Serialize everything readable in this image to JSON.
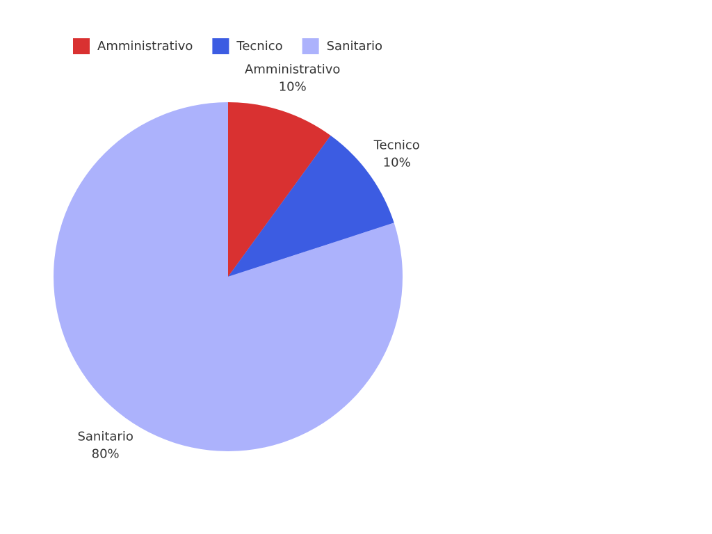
{
  "chart_data": {
    "type": "pie",
    "categories": [
      "Amministrativo",
      "Tecnico",
      "Sanitario"
    ],
    "values": [
      10,
      10,
      80
    ],
    "value_labels": [
      "10%",
      "10%",
      "80%"
    ],
    "colors": [
      "#d93131",
      "#3c5ce2",
      "#acb2fc"
    ],
    "legend": "top-left"
  }
}
